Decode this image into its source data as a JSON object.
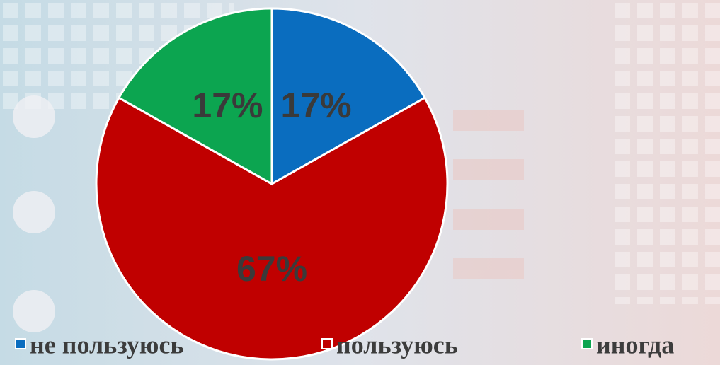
{
  "chart_data": {
    "type": "pie",
    "categories": [
      "не пользуюсь",
      "пользуюсь",
      "иногда"
    ],
    "values": [
      17,
      67,
      17
    ],
    "value_labels": [
      "17%",
      "67%",
      "17%"
    ],
    "colors": [
      "#0a6dbf",
      "#c00000",
      "#0ca550"
    ],
    "legend": "bottom"
  }
}
